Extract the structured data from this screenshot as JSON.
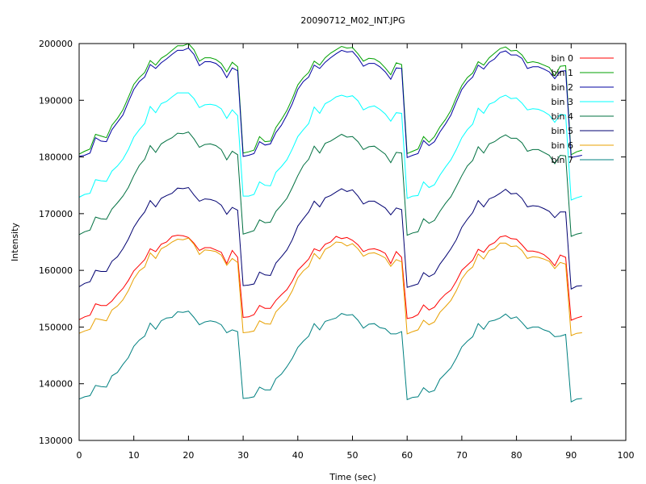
{
  "chart_data": {
    "type": "line",
    "title": "20090712_M02_INT.JPG",
    "xlabel": "Time (sec)",
    "ylabel": "Intensity",
    "xlim": [
      0,
      100
    ],
    "ylim": [
      130000,
      200000
    ],
    "xticks": [
      0,
      10,
      20,
      30,
      40,
      50,
      60,
      70,
      80,
      90,
      100
    ],
    "yticks": [
      130000,
      140000,
      150000,
      160000,
      170000,
      180000,
      190000,
      200000
    ],
    "grid": false,
    "legend_position": "top-right",
    "x_start": 0,
    "x_step": 1,
    "series": [
      {
        "name": "bin 0",
        "color": "#ff0000",
        "values": [
          151300,
          151800,
          152100,
          154100,
          153800,
          153800,
          154600,
          155800,
          156800,
          158200,
          159900,
          160900,
          161900,
          163800,
          163300,
          164600,
          165000,
          166000,
          166200,
          166100,
          165800,
          164800,
          163500,
          164000,
          164000,
          163600,
          163200,
          161200,
          163500,
          162300,
          151700,
          151800,
          152200,
          153800,
          153300,
          153300,
          154700,
          155700,
          156600,
          158100,
          160000,
          161000,
          162000,
          163800,
          163400,
          164600,
          165000,
          166000,
          165600,
          165800,
          165300,
          164500,
          163300,
          163700,
          163800,
          163500,
          163000,
          161200,
          163300,
          162300,
          151500,
          151700,
          152200,
          153900,
          153000,
          153500,
          154800,
          155800,
          156500,
          158100,
          160000,
          160900,
          161800,
          163700,
          163200,
          164400,
          164900,
          165900,
          166100,
          165600,
          165500,
          164500,
          163400,
          163400,
          163200,
          162800,
          162000,
          160800,
          162700,
          162300,
          151200,
          151600,
          151900
        ]
      },
      {
        "name": "bin 1",
        "color": "#00a000",
        "values": [
          180500,
          181000,
          181400,
          184000,
          183700,
          183400,
          185600,
          186800,
          188300,
          190500,
          192800,
          194000,
          194900,
          197000,
          196200,
          197400,
          198000,
          198800,
          199600,
          199600,
          200000,
          198900,
          196900,
          197500,
          197500,
          197200,
          196500,
          195000,
          196700,
          195900,
          180700,
          180900,
          181200,
          183600,
          182700,
          182800,
          185200,
          186600,
          188200,
          190300,
          192700,
          194000,
          194900,
          196900,
          196200,
          197500,
          198300,
          198900,
          199500,
          199200,
          199300,
          198200,
          196900,
          197400,
          197300,
          196700,
          195700,
          194500,
          196600,
          196300,
          180600,
          181000,
          181400,
          183600,
          182600,
          183600,
          185300,
          186600,
          188200,
          190500,
          192600,
          194000,
          194800,
          196800,
          196200,
          197500,
          198300,
          199100,
          199400,
          198700,
          198800,
          198000,
          196600,
          196800,
          196600,
          196200,
          195800,
          194300,
          196000,
          196100,
          180400,
          180900,
          181200
        ]
      },
      {
        "name": "bin 2",
        "color": "#0000a0",
        "values": [
          180100,
          180300,
          180700,
          183400,
          182800,
          182700,
          184800,
          186100,
          187400,
          189700,
          191900,
          193300,
          194100,
          196300,
          195600,
          196600,
          197300,
          198100,
          198800,
          198800,
          199200,
          198100,
          196100,
          196800,
          196800,
          196500,
          195700,
          194000,
          195700,
          195200,
          180100,
          180300,
          180600,
          182700,
          182100,
          182300,
          184300,
          185600,
          187400,
          189400,
          191900,
          193300,
          194100,
          196200,
          195600,
          196700,
          197500,
          198200,
          198800,
          198500,
          198600,
          197500,
          196000,
          196500,
          196500,
          195900,
          195000,
          193700,
          195700,
          195600,
          179900,
          180300,
          180600,
          182900,
          182000,
          182700,
          184400,
          185800,
          187400,
          189700,
          191900,
          193200,
          194100,
          196200,
          195500,
          196700,
          197300,
          198400,
          198700,
          198000,
          198000,
          197400,
          195600,
          195900,
          195900,
          195500,
          195000,
          193800,
          195100,
          195200,
          179900,
          180100,
          180300
        ]
      },
      {
        "name": "bin 3",
        "color": "#00ffff",
        "values": [
          172900,
          173400,
          173600,
          176000,
          175800,
          175700,
          177500,
          178400,
          179600,
          181300,
          183500,
          184800,
          185900,
          188900,
          187800,
          189400,
          189800,
          190600,
          191300,
          191300,
          191300,
          190300,
          188700,
          189200,
          189300,
          189100,
          188500,
          186800,
          188300,
          187300,
          173100,
          173100,
          173400,
          175600,
          175000,
          174900,
          177300,
          178300,
          179500,
          181400,
          183600,
          184800,
          185900,
          188800,
          187700,
          189400,
          189900,
          190600,
          190900,
          190600,
          190800,
          189900,
          188300,
          188800,
          189000,
          188400,
          187600,
          186300,
          187800,
          187700,
          172700,
          173100,
          173200,
          175600,
          174600,
          175100,
          176800,
          178200,
          179500,
          181300,
          183400,
          184800,
          185800,
          188600,
          187700,
          189300,
          189700,
          190500,
          190900,
          190300,
          190400,
          189500,
          188300,
          188500,
          188400,
          188000,
          187400,
          186100,
          187500,
          187400,
          172400,
          172800,
          173100
        ]
      },
      {
        "name": "bin 4",
        "color": "#007040",
        "values": [
          166300,
          166800,
          167100,
          169400,
          169100,
          169000,
          170800,
          171900,
          173100,
          174600,
          176700,
          178500,
          179600,
          182000,
          180800,
          182300,
          182900,
          183400,
          184200,
          184100,
          184400,
          183200,
          181700,
          182200,
          182300,
          182000,
          181300,
          179500,
          181000,
          180400,
          166400,
          166700,
          167000,
          168900,
          168400,
          168500,
          170400,
          171500,
          172700,
          174600,
          176700,
          178500,
          179600,
          181900,
          180700,
          182400,
          182800,
          183400,
          184000,
          183500,
          183600,
          182700,
          181300,
          181800,
          181900,
          181200,
          180500,
          179000,
          180800,
          180700,
          166200,
          166600,
          166800,
          169100,
          168300,
          168800,
          170400,
          171800,
          173000,
          174800,
          176700,
          178400,
          179400,
          181800,
          180700,
          182300,
          182700,
          183400,
          183900,
          183300,
          183300,
          182500,
          181000,
          181300,
          181300,
          180800,
          180300,
          178800,
          180300,
          180200,
          166000,
          166400,
          166600
        ]
      },
      {
        "name": "bin 5",
        "color": "#000070",
        "values": [
          157100,
          157700,
          158000,
          160000,
          159800,
          159800,
          161600,
          162400,
          163800,
          165500,
          167600,
          169100,
          170300,
          172300,
          171200,
          172700,
          173200,
          173600,
          174500,
          174400,
          174600,
          173300,
          172200,
          172600,
          172500,
          172200,
          171500,
          169900,
          171100,
          170600,
          157300,
          157400,
          157600,
          159700,
          159200,
          159100,
          161300,
          162400,
          163600,
          165400,
          167800,
          169100,
          170300,
          172200,
          171200,
          172800,
          173200,
          173800,
          174400,
          173900,
          174200,
          173100,
          171700,
          172200,
          172200,
          171600,
          171000,
          169800,
          171000,
          170700,
          157000,
          157300,
          157600,
          159600,
          158900,
          159400,
          161100,
          162400,
          163800,
          165400,
          167600,
          169000,
          170200,
          172300,
          171200,
          172600,
          173000,
          173600,
          174300,
          173500,
          173600,
          172700,
          171200,
          171400,
          171300,
          170900,
          170400,
          169300,
          170300,
          170300,
          156700,
          157200,
          157300
        ]
      },
      {
        "name": "bin 6",
        "color": "#e8a000",
        "values": [
          148900,
          149300,
          149600,
          151500,
          151300,
          151100,
          153000,
          153700,
          154800,
          156400,
          158500,
          159900,
          160600,
          163100,
          162100,
          163800,
          164300,
          165000,
          165500,
          165400,
          165700,
          164600,
          162800,
          163600,
          163500,
          163300,
          162700,
          160900,
          162100,
          161400,
          149000,
          149100,
          149300,
          151100,
          150600,
          150500,
          152700,
          153700,
          154700,
          156400,
          158700,
          159900,
          160700,
          163000,
          162000,
          163700,
          164200,
          165000,
          164900,
          164300,
          164700,
          163800,
          162500,
          163000,
          163100,
          162700,
          162200,
          160700,
          161900,
          161500,
          148800,
          149200,
          149500,
          151200,
          150400,
          150900,
          152600,
          153600,
          154700,
          156400,
          158500,
          159800,
          160600,
          162900,
          162000,
          163500,
          163800,
          164800,
          164800,
          164200,
          164300,
          163500,
          162100,
          162400,
          162300,
          162000,
          161600,
          160300,
          161400,
          161100,
          148500,
          148900,
          149000
        ]
      },
      {
        "name": "bin 7",
        "color": "#008080",
        "values": [
          137300,
          137700,
          137900,
          139700,
          139500,
          139400,
          141400,
          142000,
          143400,
          144600,
          146600,
          147700,
          148400,
          150700,
          149600,
          151100,
          151600,
          151700,
          152700,
          152600,
          152800,
          151700,
          150400,
          150900,
          151100,
          150900,
          150400,
          149000,
          149500,
          149200,
          137400,
          137500,
          137700,
          139400,
          138900,
          138900,
          140900,
          141700,
          143000,
          144500,
          146400,
          147500,
          148400,
          150600,
          149500,
          151000,
          151300,
          151600,
          152400,
          152100,
          152200,
          151200,
          149800,
          150500,
          150600,
          149900,
          149700,
          148800,
          148800,
          149200,
          137200,
          137600,
          137700,
          139300,
          138500,
          138800,
          140800,
          141800,
          142800,
          144500,
          146500,
          147500,
          148300,
          150600,
          149600,
          151000,
          151200,
          151600,
          152300,
          151500,
          151800,
          150800,
          149700,
          150000,
          150000,
          149500,
          149200,
          148300,
          148400,
          148700,
          136800,
          137300,
          137400
        ]
      }
    ]
  }
}
